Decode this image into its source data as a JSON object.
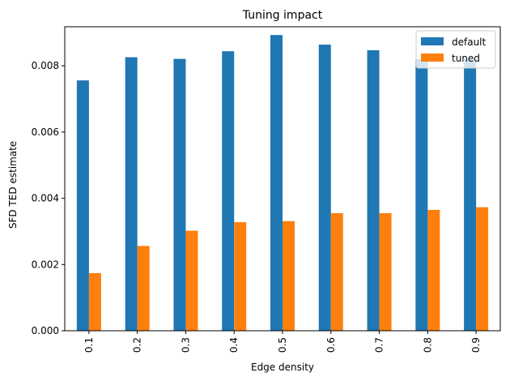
{
  "chart_data": {
    "type": "bar",
    "title": "Tuning impact",
    "xlabel": "Edge density",
    "ylabel": "SFD TED estimate",
    "categories": [
      "0.1",
      "0.2",
      "0.3",
      "0.4",
      "0.5",
      "0.6",
      "0.7",
      "0.8",
      "0.9"
    ],
    "series": [
      {
        "name": "default",
        "color": "#1f77b4",
        "values": [
          0.00756,
          0.00826,
          0.00821,
          0.00844,
          0.00893,
          0.00864,
          0.00847,
          0.0082,
          0.0082
        ]
      },
      {
        "name": "tuned",
        "color": "#ff7f0e",
        "values": [
          0.00174,
          0.00256,
          0.00302,
          0.00328,
          0.00331,
          0.00355,
          0.00355,
          0.00365,
          0.00373
        ]
      }
    ],
    "ylim": [
      0,
      0.00918
    ],
    "yticks": [
      "0.000",
      "0.002",
      "0.004",
      "0.006",
      "0.008"
    ],
    "ytick_values": [
      0,
      0.002,
      0.004,
      0.006,
      0.008
    ],
    "xtick_rotation": "vertical",
    "grid": false,
    "legend_position": "top-right"
  }
}
